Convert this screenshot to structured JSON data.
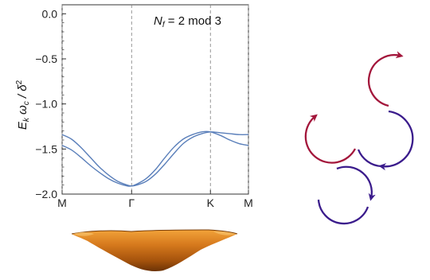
{
  "chart_data": {
    "type": "line",
    "title": "",
    "annotation": {
      "prefix": "N",
      "prefix_sub": "f",
      "text": " = 2 mod 3"
    },
    "ylabel": {
      "E": "E",
      "E_sub": "k",
      "omega": " ω",
      "omega_sub": "c",
      "rest": " / δ",
      "rest_sup": "2"
    },
    "xlabel": "",
    "ylim": [
      -2.0,
      0.1
    ],
    "yticks": [
      {
        "value": 0,
        "label": "0.0"
      },
      {
        "value": -0.5,
        "label": "−0.5"
      },
      {
        "value": -1.0,
        "label": "−1.0"
      },
      {
        "value": -1.5,
        "label": "−1.5"
      },
      {
        "value": -2.0,
        "label": "−2.0"
      }
    ],
    "xlim": [
      0,
      1
    ],
    "xticks": [
      {
        "value": 0,
        "label": "M"
      },
      {
        "value": 0.373,
        "label": "Γ"
      },
      {
        "value": 0.796,
        "label": "K"
      },
      {
        "value": 1.0,
        "label": "M"
      }
    ],
    "grid": "vertical dashed lines at high-symmetry points",
    "line_color": "#5a7fba",
    "series": [
      {
        "x": [
          0,
          0.05,
          0.1,
          0.15,
          0.2,
          0.25,
          0.3,
          0.35,
          0.373,
          0.4,
          0.45,
          0.5,
          0.55,
          0.6,
          0.65,
          0.7,
          0.75,
          0.796,
          0.85,
          0.9,
          0.95,
          1.0
        ],
        "values": [
          -1.34,
          -1.39,
          -1.48,
          -1.59,
          -1.7,
          -1.79,
          -1.86,
          -1.9,
          -1.91,
          -1.9,
          -1.86,
          -1.78,
          -1.67,
          -1.55,
          -1.44,
          -1.37,
          -1.33,
          -1.31,
          -1.32,
          -1.33,
          -1.34,
          -1.34
        ]
      },
      {
        "x": [
          0,
          0.05,
          0.1,
          0.15,
          0.2,
          0.25,
          0.3,
          0.35,
          0.373,
          0.4,
          0.45,
          0.5,
          0.55,
          0.6,
          0.65,
          0.7,
          0.75,
          0.796,
          0.85,
          0.9,
          0.95,
          1.0
        ],
        "values": [
          -1.46,
          -1.51,
          -1.59,
          -1.68,
          -1.76,
          -1.83,
          -1.88,
          -1.91,
          -1.91,
          -1.89,
          -1.83,
          -1.73,
          -1.6,
          -1.48,
          -1.39,
          -1.34,
          -1.31,
          -1.31,
          -1.35,
          -1.4,
          -1.44,
          -1.46
        ]
      }
    ]
  },
  "decoration": {
    "surface_colors": [
      "#f2a33a",
      "#d77a1d",
      "#a4520c",
      "#6b3206"
    ],
    "arrow_red": "#a3163b",
    "arrow_blue": "#3b1c8c"
  }
}
